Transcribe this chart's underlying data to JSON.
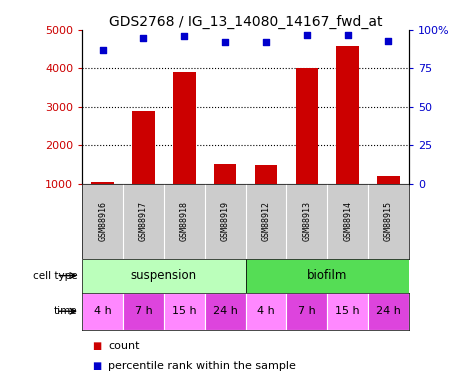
{
  "title": "GDS2768 / IG_13_14080_14167_fwd_at",
  "samples": [
    "GSM88916",
    "GSM88917",
    "GSM88918",
    "GSM88919",
    "GSM88912",
    "GSM88913",
    "GSM88914",
    "GSM88915"
  ],
  "counts": [
    1050,
    2900,
    3900,
    1520,
    1480,
    4020,
    4580,
    1200
  ],
  "percentiles": [
    87,
    95,
    96,
    92,
    92,
    97,
    97,
    93
  ],
  "ylim_left": [
    1000,
    5000
  ],
  "ylim_right": [
    0,
    100
  ],
  "yticks_left": [
    1000,
    2000,
    3000,
    4000,
    5000
  ],
  "yticks_right": [
    0,
    25,
    50,
    75,
    100
  ],
  "ytick_labels_right": [
    "0",
    "25",
    "50",
    "75",
    "100%"
  ],
  "bar_color": "#cc0000",
  "scatter_color": "#0000cc",
  "grid_color": "#000000",
  "cell_type_labels": [
    "suspension",
    "biofilm"
  ],
  "cell_type_color_susp": "#bbffbb",
  "cell_type_color_bio": "#55dd55",
  "time_labels": [
    "4 h",
    "7 h",
    "15 h",
    "24 h",
    "4 h",
    "7 h",
    "15 h",
    "24 h"
  ],
  "time_color_light": "#ff88ff",
  "time_color_dark": "#dd44dd",
  "sample_bg_color": "#cccccc",
  "label_color_left": "#cc0000",
  "label_color_right": "#0000cc",
  "title_fontsize": 10,
  "tick_fontsize": 8,
  "legend_fontsize": 8
}
